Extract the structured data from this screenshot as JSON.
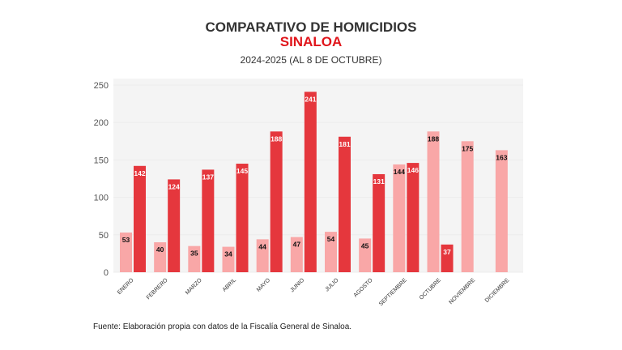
{
  "header": {
    "title": "COMPARATIVO DE HOMICIDIOS",
    "subtitle": "SINALOA",
    "period": "2024-2025 (AL 8 DE OCTUBRE)"
  },
  "footer": {
    "source": "Fuente: Elaboración propia con datos de la Fiscalía General de Sinaloa."
  },
  "chart_data": {
    "type": "bar",
    "title": "COMPARATIVO DE HOMICIDIOS SINALOA",
    "xlabel": "",
    "ylabel": "",
    "ylim": [
      0,
      250
    ],
    "yticks": [
      0,
      50,
      100,
      150,
      200,
      250
    ],
    "grid": true,
    "categories": [
      "ENERO",
      "FEBRERO",
      "MARZO",
      "ABRIL",
      "MAYO",
      "JUNIO",
      "JULIO",
      "AGOSTO",
      "SEPTIEMBRE",
      "OCTUBRE",
      "NOVIEMBRE",
      "DICIEMBRE"
    ],
    "series": [
      {
        "color": "#f9a7a7",
        "label_color": "#111111",
        "values": [
          53,
          40,
          35,
          34,
          44,
          47,
          54,
          45,
          144,
          188,
          175,
          163
        ]
      },
      {
        "color": "#e5373d",
        "label_color": "#ffffff",
        "values": [
          142,
          124,
          137,
          145,
          188,
          241,
          181,
          131,
          146,
          37,
          null,
          null
        ]
      }
    ]
  }
}
